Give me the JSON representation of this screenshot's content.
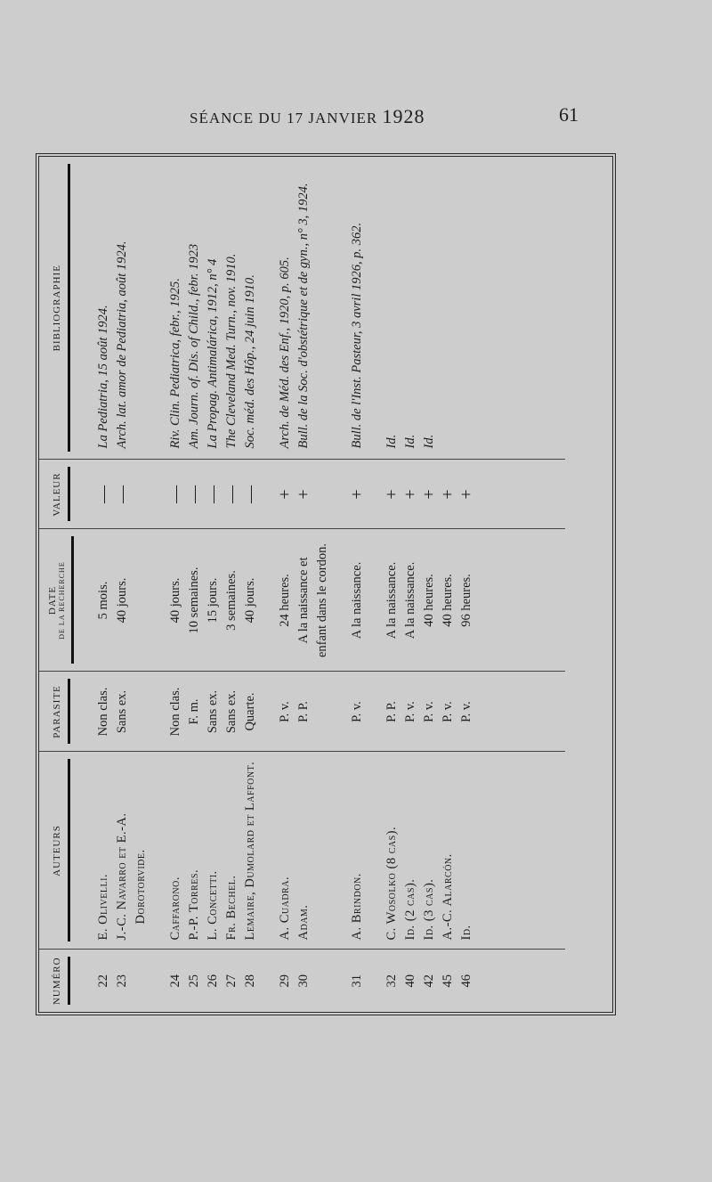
{
  "header": {
    "running_title": "SÉANCE DU 17 JANVIER",
    "year": "1928",
    "page_number": "61"
  },
  "table": {
    "columns": {
      "numero": "NUMÉRO",
      "auteurs": "AUTEURS",
      "parasite": "PARASITE",
      "date": "DATE",
      "date_sub": "DE LA RECHERCHE",
      "valeur": "VALEUR",
      "bibliographie": "BIBLIOGRAPHIE"
    },
    "rows": [
      {
        "numero": "22",
        "auteurs": "E. Olivelli.",
        "parasite": "Non clas.",
        "date": "5 mois.",
        "valeur": "—",
        "bibliographie": "La Pediatria, 15 août 1924."
      },
      {
        "numero": "23",
        "auteurs": "J.-C. Navarro et E.-A. Dorotorvide.",
        "parasite": "Sans ex.",
        "date": "40 jours.",
        "valeur": "—",
        "bibliographie": "Arch. lat. amor de Pediatria, août 1924."
      },
      {
        "numero": "24",
        "auteurs": "Caffarono.",
        "parasite": "Non clas.",
        "date": "40 jours.",
        "valeur": "—",
        "bibliographie": "Riv. Clin. Pediatrica, febr., 1925."
      },
      {
        "numero": "25",
        "auteurs": "P.-P. Torres.",
        "parasite": "F. m.",
        "date": "10 semaines.",
        "valeur": "—",
        "bibliographie": "Am. Journ. of. Dis. of Child., febr. 1923"
      },
      {
        "numero": "26",
        "auteurs": "L. Concetti.",
        "parasite": "Sans ex.",
        "date": "15 jours.",
        "valeur": "—",
        "bibliographie": "La Propag. Antimalárica, 1912, n° 4"
      },
      {
        "numero": "27",
        "auteurs": "Fr. Bechel.",
        "parasite": "Sans ex.",
        "date": "3 semaines.",
        "valeur": "—",
        "bibliographie": "The Cleveland Med. Turn., nov. 1910."
      },
      {
        "numero": "28",
        "auteurs": "Lemaire, Dumolard et Laffont.",
        "parasite": "Quarte.",
        "date": "40 jours.",
        "valeur": "—",
        "bibliographie": "Soc. méd. des Hôp., 24 juin 1910."
      },
      {
        "numero": "29",
        "auteurs": "A. Cuadra.",
        "parasite": "P. v.",
        "date": "24 heures.",
        "valeur": "+",
        "bibliographie": "Arch. de Méd. des Enf., 1920, p. 605."
      },
      {
        "numero": "30",
        "auteurs": "Adam.",
        "parasite": "P. P.",
        "date": "A la naissance et enfant dans le cordon.",
        "valeur": "+",
        "bibliographie": "Bull. de la Soc. d'obstétrique et de gyn., n° 3, 1924."
      },
      {
        "numero": "31",
        "auteurs": "A. Brindon.",
        "parasite": "P. v.",
        "date": "A la naissance.",
        "valeur": "+",
        "bibliographie": "Bull. de l'Inst. Pasteur, 3 avril 1926, p. 362."
      },
      {
        "numero": "32",
        "auteurs": "C. Wosolko (8 cas).",
        "parasite": "P. P.",
        "date": "A la naissance.",
        "valeur": "+",
        "bibliographie": "Id."
      },
      {
        "numero": "40",
        "auteurs": "Id. (2 cas).",
        "parasite": "P. v.",
        "date": "A la naissance.",
        "valeur": "+",
        "bibliographie": "Id."
      },
      {
        "numero": "42",
        "auteurs": "Id. (3 cas).",
        "parasite": "P. v.",
        "date": "40 heures.",
        "valeur": "+",
        "bibliographie": "Id."
      },
      {
        "numero": "45",
        "auteurs": "A.-C. Alarcón.",
        "parasite": "P. v.",
        "date": "40 heures.",
        "valeur": "+",
        "bibliographie": ""
      },
      {
        "numero": "46",
        "auteurs": "Id.",
        "parasite": "P. v.",
        "date": "96 heures.",
        "valeur": "+",
        "bibliographie": ""
      }
    ]
  }
}
